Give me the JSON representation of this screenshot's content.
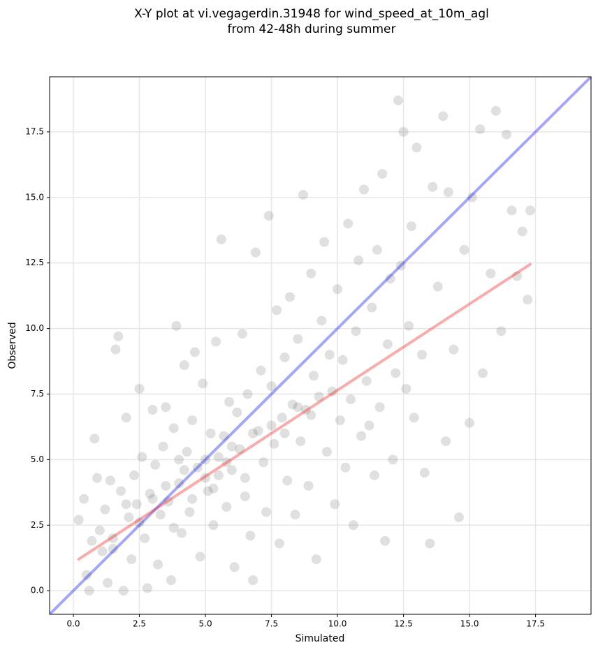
{
  "chart_data": {
    "type": "scatter",
    "title": [
      "X-Y plot at vi.vegagerdin.31948 for wind_speed_at_10m_agl",
      "from 42-48h during summer"
    ],
    "xlabel": "Simulated",
    "ylabel": "Observed",
    "xlim": [
      -0.9,
      19.6
    ],
    "ylim": [
      -0.9,
      19.6
    ],
    "xticks": [
      {
        "value": 0,
        "label": "0.0"
      },
      2.5,
      {
        "value": 5,
        "label": "5.0"
      },
      7.5,
      {
        "value": 10,
        "label": "10.0"
      },
      12.5,
      {
        "value": 15,
        "label": "15.0"
      },
      17.5
    ],
    "yticks": [
      {
        "value": 0,
        "label": "0.0"
      },
      2.5,
      {
        "value": 5,
        "label": "5.0"
      },
      7.5,
      {
        "value": 10,
        "label": "10.0"
      },
      12.5,
      {
        "value": 15,
        "label": "15.0"
      },
      17.5
    ],
    "grid": true,
    "color": "#555555",
    "x": [
      0.2,
      0.4,
      0.5,
      0.6,
      0.7,
      0.8,
      0.9,
      1.0,
      1.1,
      1.2,
      1.3,
      1.4,
      1.5,
      1.6,
      1.7,
      1.8,
      1.9,
      2.0,
      2.1,
      2.2,
      2.3,
      2.4,
      2.5,
      2.6,
      2.7,
      2.8,
      2.9,
      3.0,
      3.1,
      3.2,
      3.3,
      3.4,
      3.5,
      3.6,
      3.7,
      3.8,
      3.9,
      4.0,
      4.1,
      4.2,
      4.3,
      4.4,
      4.5,
      4.6,
      4.7,
      4.8,
      4.9,
      5.0,
      5.1,
      5.2,
      5.3,
      5.4,
      5.5,
      5.6,
      5.7,
      5.8,
      5.9,
      6.0,
      6.1,
      6.2,
      6.3,
      6.4,
      6.5,
      6.6,
      6.7,
      6.8,
      6.9,
      7.0,
      7.1,
      7.2,
      7.3,
      7.4,
      7.5,
      7.6,
      7.7,
      7.8,
      7.9,
      8.0,
      8.1,
      8.2,
      8.3,
      8.4,
      8.5,
      8.6,
      8.7,
      8.8,
      8.9,
      9.0,
      9.1,
      9.2,
      9.3,
      9.4,
      9.5,
      9.6,
      9.7,
      9.8,
      9.9,
      10.0,
      10.1,
      10.2,
      10.3,
      10.4,
      10.5,
      10.6,
      10.7,
      10.8,
      10.9,
      11.0,
      11.1,
      11.2,
      11.3,
      11.4,
      11.5,
      11.6,
      11.7,
      11.8,
      11.9,
      12.0,
      12.1,
      12.2,
      12.3,
      12.4,
      12.5,
      12.6,
      12.7,
      12.8,
      12.9,
      13.0,
      13.2,
      13.3,
      13.5,
      13.6,
      13.8,
      14.0,
      14.1,
      14.2,
      14.4,
      14.6,
      14.8,
      15.0,
      15.1,
      15.4,
      15.5,
      15.8,
      16.0,
      16.2,
      16.4,
      16.6,
      16.8,
      17.0,
      17.2,
      17.3,
      3.5,
      4.0,
      4.5,
      5.0,
      5.5,
      6.0,
      6.5,
      3.0,
      2.5,
      4.2,
      5.8,
      6.8,
      7.5,
      8.0,
      8.5,
      9.0,
      2.0,
      1.5,
      3.8,
      5.3
    ],
    "values": [
      2.7,
      3.5,
      0.6,
      0.0,
      1.9,
      5.8,
      4.3,
      2.3,
      1.5,
      3.1,
      0.3,
      4.2,
      2.0,
      9.2,
      9.7,
      3.8,
      0.0,
      6.6,
      2.8,
      1.2,
      4.4,
      3.3,
      7.7,
      5.1,
      2.0,
      0.1,
      3.7,
      6.9,
      4.8,
      1.0,
      2.9,
      5.5,
      7.0,
      3.4,
      0.4,
      6.2,
      10.1,
      4.1,
      2.2,
      8.6,
      5.3,
      3.0,
      6.5,
      9.1,
      4.7,
      1.3,
      7.9,
      5.0,
      3.8,
      6.0,
      2.5,
      9.5,
      4.4,
      13.4,
      5.9,
      3.2,
      7.2,
      4.6,
      0.9,
      6.8,
      5.4,
      9.8,
      3.6,
      7.5,
      2.1,
      0.4,
      12.9,
      6.1,
      8.4,
      4.9,
      3.0,
      14.3,
      7.8,
      5.6,
      10.7,
      1.8,
      6.6,
      8.9,
      4.2,
      11.2,
      7.1,
      2.9,
      9.6,
      5.7,
      15.1,
      6.9,
      4.0,
      12.1,
      8.2,
      1.2,
      7.4,
      10.3,
      13.3,
      5.3,
      9.0,
      7.6,
      3.3,
      11.5,
      6.5,
      8.8,
      4.7,
      14.0,
      7.3,
      2.5,
      9.9,
      12.6,
      5.9,
      15.3,
      8.0,
      6.3,
      10.8,
      4.4,
      13.0,
      7.0,
      15.9,
      1.9,
      9.4,
      11.9,
      5.0,
      8.3,
      18.7,
      12.4,
      17.5,
      7.7,
      10.1,
      13.9,
      6.6,
      16.9,
      9.0,
      4.5,
      1.8,
      15.4,
      11.6,
      18.1,
      5.7,
      15.2,
      9.2,
      2.8,
      13.0,
      6.4,
      15.0,
      17.6,
      8.3,
      12.1,
      18.3,
      9.9,
      17.4,
      14.5,
      12.0,
      13.7,
      11.1,
      14.5,
      4.0,
      5.0,
      3.5,
      4.3,
      5.1,
      5.5,
      4.3,
      3.5,
      2.6,
      4.6,
      4.9,
      6.0,
      6.3,
      6.0,
      7.0,
      6.7,
      3.3,
      1.6,
      2.4,
      3.9
    ],
    "lines": [
      {
        "color": "#0000ee",
        "x": [
          -0.9,
          19.6
        ],
        "values": [
          -0.9,
          19.6
        ]
      },
      {
        "color": "#ee1111",
        "x": [
          0.2,
          17.3
        ],
        "values": [
          1.2,
          12.45
        ]
      }
    ]
  }
}
